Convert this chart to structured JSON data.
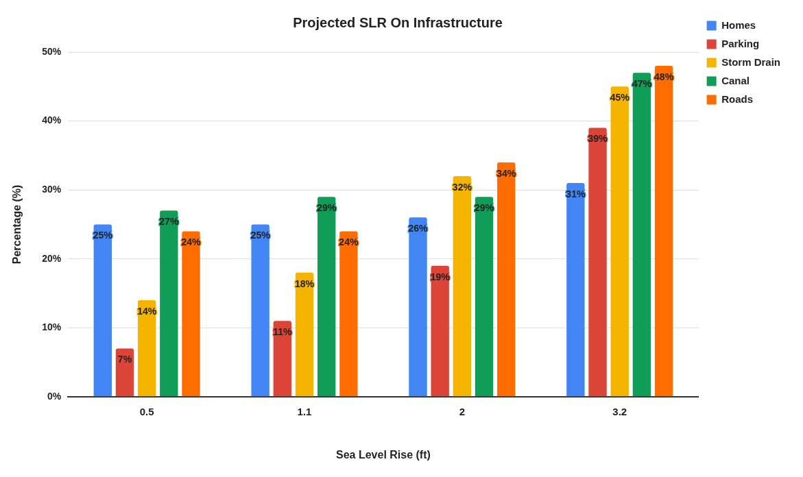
{
  "chart_data": {
    "type": "bar",
    "title": "Projected SLR On Infrastructure",
    "xlabel": "Sea Level Rise (ft)",
    "ylabel": "Percentage (%)",
    "categories": [
      "0.5",
      "1.1",
      "2",
      "3.2"
    ],
    "series": [
      {
        "name": "Homes",
        "color": "#4285f4",
        "values": [
          25,
          25,
          26,
          31
        ],
        "value_labels": [
          "25%",
          "25%",
          "26%",
          "31%"
        ]
      },
      {
        "name": "Parking",
        "color": "#db4437",
        "values": [
          7,
          11,
          19,
          39
        ],
        "value_labels": [
          "7%",
          "11%",
          "19%",
          "39%"
        ]
      },
      {
        "name": "Storm Drain",
        "color": "#f4b400",
        "values": [
          14,
          18,
          32,
          45
        ],
        "value_labels": [
          "14%",
          "18%",
          "32%",
          "45%"
        ]
      },
      {
        "name": "Canal",
        "color": "#0f9d58",
        "values": [
          27,
          29,
          29,
          47
        ],
        "value_labels": [
          "27%",
          "29%",
          "29%",
          "47%"
        ]
      },
      {
        "name": "Roads",
        "color": "#ff6d01",
        "values": [
          24,
          24,
          34,
          48
        ],
        "value_labels": [
          "24%",
          "24%",
          "34%",
          "48%"
        ]
      }
    ],
    "ylim": [
      0,
      50
    ],
    "yticks": [
      {
        "value": 0,
        "label": "0%"
      },
      {
        "value": 10,
        "label": "10%"
      },
      {
        "value": 20,
        "label": "20%"
      },
      {
        "value": 30,
        "label": "30%"
      },
      {
        "value": 40,
        "label": "40%"
      },
      {
        "value": 50,
        "label": "50%"
      }
    ],
    "grid": "y",
    "legend": "top right"
  }
}
